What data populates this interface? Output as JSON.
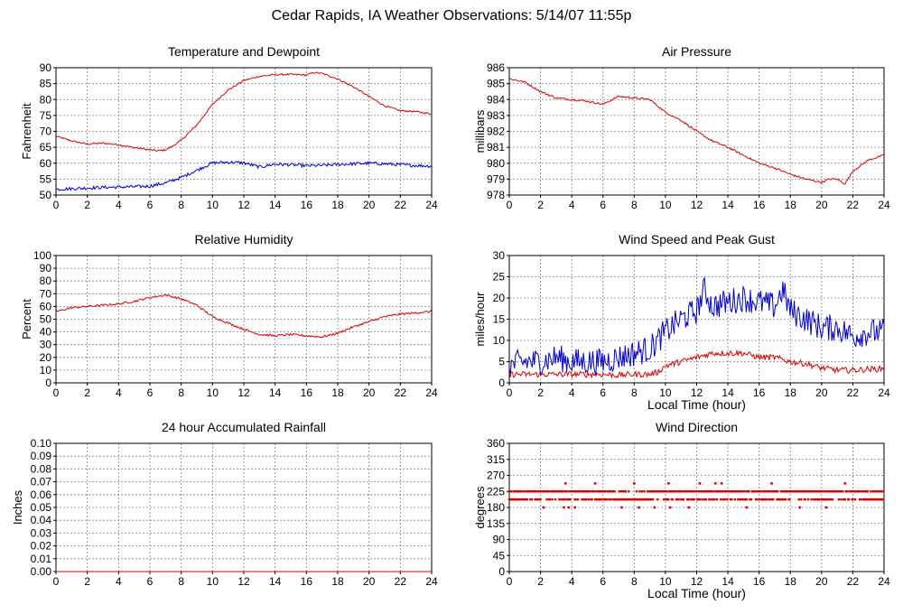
{
  "page": {
    "title": "Cedar Rapids, IA Weather Observations: 5/14/07 11:55p"
  },
  "colors": {
    "red": "#dd0000",
    "blue": "#0000cc",
    "grid": "#808080",
    "frame": "#000000"
  },
  "chart_data": [
    {
      "id": "temp",
      "type": "line",
      "title": "Temperature and Dewpoint",
      "ylabel": "Fahrenheit",
      "xlabel": "",
      "xlim": [
        0,
        24
      ],
      "ylim": [
        50,
        90
      ],
      "yticks": [
        50,
        55,
        60,
        65,
        70,
        75,
        80,
        85,
        90
      ],
      "xticks": [
        0,
        2,
        4,
        6,
        8,
        10,
        12,
        14,
        16,
        18,
        20,
        22,
        24
      ],
      "grid": true,
      "series": [
        {
          "color": "red",
          "noise": 0.25,
          "x": [
            0,
            1,
            2,
            3,
            4,
            5,
            6,
            6.5,
            7,
            7.5,
            8,
            9,
            10,
            11,
            12,
            13,
            14,
            15,
            16,
            16.5,
            17,
            18,
            19,
            20,
            21,
            22,
            23,
            24
          ],
          "y": [
            68.5,
            67,
            66,
            66.3,
            65.8,
            64.9,
            64.2,
            63.9,
            64.2,
            65.5,
            67.2,
            72,
            78.5,
            83,
            86,
            87.3,
            87.8,
            87.9,
            87.7,
            88.5,
            88.2,
            86.5,
            84,
            81,
            78,
            76.5,
            76.2,
            75.5
          ]
        },
        {
          "color": "blue",
          "noise": 0.5,
          "x": [
            0,
            1,
            2,
            3,
            4,
            5,
            6,
            7,
            8,
            9,
            10,
            11,
            12,
            13,
            14,
            15,
            16,
            17,
            18,
            19,
            20,
            21,
            22,
            23,
            24
          ],
          "y": [
            51.8,
            52,
            52.2,
            52.4,
            52.5,
            52.6,
            52.8,
            53.8,
            55.5,
            57.8,
            60.1,
            60.3,
            60.1,
            58.8,
            59.7,
            59.5,
            59.2,
            59.3,
            59.6,
            59.8,
            60,
            59.8,
            59.5,
            59.3,
            59.1
          ]
        }
      ]
    },
    {
      "id": "pressure",
      "type": "line",
      "title": "Air Pressure",
      "ylabel": "millibars",
      "xlabel": "",
      "xlim": [
        0,
        24
      ],
      "ylim": [
        978,
        986
      ],
      "yticks": [
        978,
        979,
        980,
        981,
        982,
        983,
        984,
        985,
        986
      ],
      "xticks": [
        0,
        2,
        4,
        6,
        8,
        10,
        12,
        14,
        16,
        18,
        20,
        22,
        24
      ],
      "grid": true,
      "series": [
        {
          "color": "red",
          "noise": 0.06,
          "x": [
            0,
            0.5,
            1,
            2,
            3,
            4,
            5,
            6,
            7,
            8,
            9,
            10,
            11,
            12,
            13,
            14,
            15,
            16,
            17,
            18,
            19,
            20,
            20.5,
            21,
            21.5,
            22,
            23,
            24
          ],
          "y": [
            985.3,
            985.2,
            985.1,
            984.5,
            984.1,
            984.0,
            983.9,
            983.7,
            984.2,
            984.1,
            984.0,
            983.2,
            982.7,
            982.0,
            981.4,
            981.0,
            980.5,
            980.0,
            979.7,
            979.3,
            979.0,
            978.8,
            979.0,
            979.0,
            978.7,
            979.5,
            980.2,
            980.5
          ]
        }
      ]
    },
    {
      "id": "humidity",
      "type": "line",
      "title": "Relative Humidity",
      "ylabel": "Percent",
      "xlabel": "",
      "xlim": [
        0,
        24
      ],
      "ylim": [
        0,
        100
      ],
      "yticks": [
        0,
        10,
        20,
        30,
        40,
        50,
        60,
        70,
        80,
        90,
        100
      ],
      "xticks": [
        0,
        2,
        4,
        6,
        8,
        10,
        12,
        14,
        16,
        18,
        20,
        22,
        24
      ],
      "grid": true,
      "series": [
        {
          "color": "red",
          "noise": 0.8,
          "x": [
            0,
            1,
            2,
            3,
            4,
            5,
            6,
            7,
            8,
            9,
            10,
            11,
            12,
            13,
            14,
            15,
            16,
            17,
            18,
            19,
            20,
            21,
            22,
            23,
            24
          ],
          "y": [
            56,
            59,
            60,
            61,
            62,
            64,
            67,
            69,
            66,
            61,
            52,
            47,
            42,
            38,
            37,
            38,
            37,
            36,
            39,
            44,
            48,
            52,
            54,
            55,
            56
          ]
        }
      ]
    },
    {
      "id": "wind",
      "type": "line",
      "title": "Wind Speed and Peak Gust",
      "ylabel": "miles/hour",
      "xlabel": "Local Time (hour)",
      "xlim": [
        0,
        24
      ],
      "ylim": [
        0,
        30
      ],
      "yticks": [
        0,
        5,
        10,
        15,
        20,
        25,
        30
      ],
      "xticks": [
        0,
        2,
        4,
        6,
        8,
        10,
        12,
        14,
        16,
        18,
        20,
        22,
        24
      ],
      "grid": true,
      "series": [
        {
          "color": "blue",
          "noise": 3.2,
          "x": [
            0,
            1,
            2,
            3,
            4,
            5,
            6,
            7,
            8,
            9,
            10,
            11,
            12,
            12.5,
            13,
            14,
            15,
            16,
            17,
            17.5,
            18,
            19,
            20,
            21,
            22,
            23,
            24
          ],
          "y": [
            4,
            5,
            5,
            6,
            5,
            5,
            5,
            6,
            7,
            8,
            12,
            15,
            17,
            22,
            18,
            19,
            20,
            19,
            18,
            22,
            17,
            15,
            13,
            13,
            11,
            12,
            12
          ]
        },
        {
          "color": "red",
          "noise": 0.7,
          "x": [
            0,
            1,
            2,
            3,
            4,
            5,
            6,
            7,
            8,
            9,
            9.5,
            10,
            11,
            12,
            13,
            14,
            15,
            16,
            17,
            18,
            19,
            20,
            21,
            22,
            23,
            24
          ],
          "y": [
            2,
            2,
            2,
            2,
            2,
            2,
            2,
            1.8,
            2,
            2,
            2.5,
            4,
            5,
            6,
            7,
            7,
            7,
            6,
            6,
            5,
            4.5,
            3.5,
            3,
            3,
            3.2,
            3.3
          ]
        }
      ]
    },
    {
      "id": "rain",
      "type": "line",
      "title": "24 hour Accumulated Rainfall",
      "ylabel": "Inches",
      "xlabel": "",
      "xlim": [
        0,
        24
      ],
      "ylim": [
        0,
        0.1
      ],
      "yticks": [
        0.0,
        0.01,
        0.02,
        0.03,
        0.04,
        0.05,
        0.06,
        0.07,
        0.08,
        0.09,
        0.1
      ],
      "ytick_labels": [
        "0.00",
        "0.01",
        "0.02",
        "0.03",
        "0.04",
        "0.05",
        "0.06",
        "0.07",
        "0.08",
        "0.09",
        "0.10"
      ],
      "xticks": [
        0,
        2,
        4,
        6,
        8,
        10,
        12,
        14,
        16,
        18,
        20,
        22,
        24
      ],
      "grid": true,
      "series": [
        {
          "color": "red",
          "noise": 0,
          "x": [
            0,
            24
          ],
          "y": [
            0,
            0
          ]
        }
      ]
    },
    {
      "id": "direction",
      "type": "scatter",
      "title": "Wind Direction",
      "ylabel": "degrees",
      "xlabel": "Local Time (hour)",
      "xlim": [
        0,
        24
      ],
      "ylim": [
        0,
        360
      ],
      "yticks": [
        0,
        45,
        90,
        135,
        180,
        225,
        270,
        315,
        360
      ],
      "xticks": [
        0,
        2,
        4,
        6,
        8,
        10,
        12,
        14,
        16,
        18,
        20,
        22,
        24
      ],
      "grid": true,
      "series": [
        {
          "color": "red",
          "pattern": "bands",
          "x": [
            0,
            24
          ],
          "y": [
            225,
            202.5
          ],
          "extra_points": [
            [
              2.2,
              180
            ],
            [
              3.5,
              180
            ],
            [
              3.6,
              247.5
            ],
            [
              3.8,
              180
            ],
            [
              4.2,
              180
            ],
            [
              5.5,
              247.5
            ],
            [
              7.2,
              180
            ],
            [
              8,
              247.5
            ],
            [
              8.3,
              180
            ],
            [
              9.3,
              180
            ],
            [
              10.2,
              247.5
            ],
            [
              10.3,
              180
            ],
            [
              11.5,
              180
            ],
            [
              12.2,
              247.5
            ],
            [
              13.2,
              247.5
            ],
            [
              13.6,
              247.5
            ],
            [
              15.2,
              180
            ],
            [
              16.8,
              247.5
            ],
            [
              18.6,
              180
            ],
            [
              20.3,
              180
            ],
            [
              21.5,
              247.5
            ]
          ]
        }
      ]
    }
  ]
}
